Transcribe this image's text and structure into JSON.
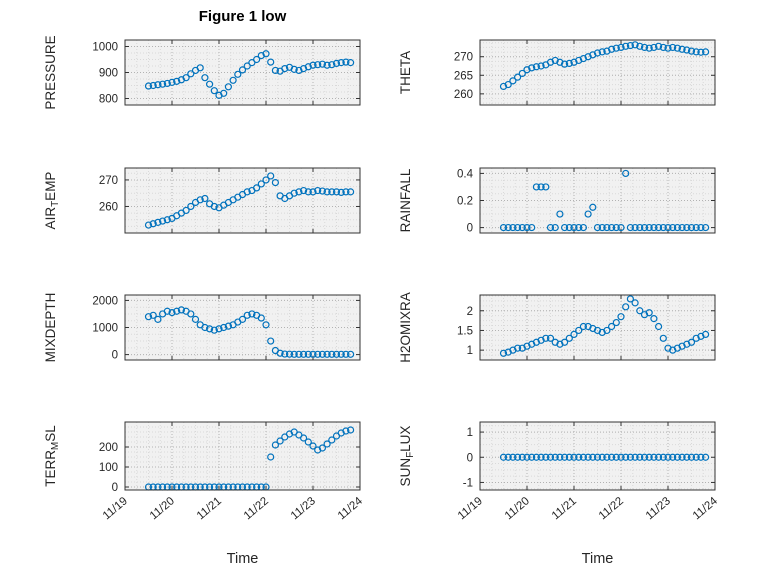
{
  "figure": {
    "title": "Figure 1 low",
    "marker_color": "#0072BD"
  },
  "chart_data": {
    "type": "scatter",
    "layout": "4x2-subplot-grid",
    "marker": "open-circle",
    "grid": "dotted-major-and-minor",
    "x_label": "Time",
    "x_range": [
      0,
      5
    ],
    "x_ticks": [
      0,
      1,
      2,
      3,
      4,
      5
    ],
    "x_tick_labels": [
      "11/19",
      "11/20",
      "11/21",
      "11/22",
      "11/23",
      "11/24"
    ],
    "x_days_since_11_19": [
      0.5,
      0.6,
      0.7,
      0.8,
      0.9,
      1,
      1.1,
      1.2,
      1.3,
      1.4,
      1.5,
      1.6,
      1.7,
      1.8,
      1.9,
      2,
      2.1,
      2.2,
      2.3,
      2.4,
      2.5,
      2.6,
      2.7,
      2.8,
      2.9,
      3,
      3.1,
      3.2,
      3.3,
      3.4,
      3.5,
      3.6,
      3.7,
      3.8,
      3.9,
      4,
      4.1,
      4.2,
      4.3,
      4.4,
      4.5,
      4.6,
      4.7,
      4.8
    ],
    "subplots": [
      {
        "name": "PRESSURE",
        "ylabel": {
          "pre": "PRESSURE",
          "sub": "",
          "post": ""
        },
        "yticks": [
          800,
          900,
          1000
        ],
        "ylim": [
          775,
          1025
        ],
        "values": [
          848,
          850,
          853,
          855,
          858,
          862,
          866,
          872,
          880,
          895,
          908,
          918,
          880,
          855,
          830,
          812,
          820,
          845,
          870,
          893,
          910,
          925,
          938,
          950,
          965,
          972,
          940,
          908,
          905,
          915,
          920,
          912,
          908,
          915,
          922,
          928,
          930,
          932,
          928,
          930,
          935,
          938,
          940,
          938
        ]
      },
      {
        "name": "THETA",
        "ylabel": {
          "pre": "THETA",
          "sub": "",
          "post": ""
        },
        "yticks": [
          260,
          265,
          270
        ],
        "ylim": [
          257,
          274.5
        ],
        "values": [
          262,
          262.5,
          263.5,
          264.5,
          265.5,
          266.5,
          267,
          267.3,
          267.5,
          267.8,
          268.5,
          269,
          268.5,
          268,
          268.2,
          268.5,
          269,
          269.5,
          270,
          270.5,
          271,
          271.3,
          271.5,
          272,
          272.3,
          272.5,
          272.8,
          273,
          273.2,
          272.8,
          272.5,
          272.3,
          272.5,
          272.8,
          272.5,
          272.3,
          272.5,
          272.3,
          272,
          271.8,
          271.5,
          271.3,
          271.2,
          271.3
        ]
      },
      {
        "name": "AIR_TEMP",
        "ylabel": {
          "pre": "AIR",
          "sub": "T",
          "post": "EMP"
        },
        "yticks": [
          260,
          270
        ],
        "ylim": [
          250,
          274.5
        ],
        "values": [
          253,
          253.5,
          254,
          254.5,
          255,
          255.5,
          256.5,
          257.5,
          258.5,
          260,
          261.5,
          262.5,
          263,
          261,
          260,
          259.5,
          260.5,
          261.5,
          262.5,
          263.5,
          264.5,
          265.5,
          266,
          267,
          268.5,
          270,
          271.5,
          269,
          264,
          263,
          264,
          265,
          265.5,
          266,
          265.5,
          265.5,
          266,
          265.8,
          265.5,
          265.5,
          265.5,
          265.3,
          265.5,
          265.5
        ]
      },
      {
        "name": "RAINFALL",
        "ylabel": {
          "pre": "RAINFALL",
          "sub": "",
          "post": ""
        },
        "yticks": [
          0,
          0.2,
          0.4
        ],
        "ylim": [
          -0.04,
          0.44
        ],
        "values": [
          0,
          0,
          0,
          0,
          0,
          0,
          0,
          0.3,
          0.3,
          0.3,
          0,
          0,
          0.1,
          0,
          0,
          0,
          0,
          0,
          0.1,
          0.15,
          0,
          0,
          0,
          0,
          0,
          0,
          0.4,
          0,
          0,
          0,
          0,
          0,
          0,
          0,
          0,
          0,
          0,
          0,
          0,
          0,
          0,
          0,
          0,
          0
        ]
      },
      {
        "name": "MIXDEPTH",
        "ylabel": {
          "pre": "MIXDEPTH",
          "sub": "",
          "post": ""
        },
        "yticks": [
          0,
          1000,
          2000
        ],
        "ylim": [
          -200,
          2200
        ],
        "values": [
          1400,
          1450,
          1300,
          1500,
          1600,
          1550,
          1600,
          1650,
          1600,
          1500,
          1300,
          1100,
          1000,
          950,
          900,
          950,
          1000,
          1050,
          1100,
          1200,
          1300,
          1450,
          1500,
          1450,
          1350,
          1100,
          500,
          150,
          50,
          20,
          15,
          10,
          10,
          10,
          10,
          10,
          10,
          10,
          10,
          10,
          10,
          10,
          10,
          10
        ]
      },
      {
        "name": "H2OMIXRA",
        "ylabel": {
          "pre": "H2OMIXRA",
          "sub": "",
          "post": ""
        },
        "yticks": [
          1,
          1.5,
          2
        ],
        "ylim": [
          0.75,
          2.4
        ],
        "values": [
          0.92,
          0.95,
          1,
          1.05,
          1.05,
          1.1,
          1.15,
          1.2,
          1.25,
          1.3,
          1.3,
          1.2,
          1.15,
          1.2,
          1.3,
          1.4,
          1.5,
          1.6,
          1.6,
          1.55,
          1.5,
          1.45,
          1.5,
          1.6,
          1.7,
          1.85,
          2.1,
          2.3,
          2.2,
          2,
          1.9,
          1.95,
          1.8,
          1.6,
          1.3,
          1.05,
          1,
          1.05,
          1.1,
          1.15,
          1.2,
          1.3,
          1.35,
          1.4
        ]
      },
      {
        "name": "TERR_MSL",
        "ylabel": {
          "pre": "TERR",
          "sub": "M",
          "post": "SL"
        },
        "yticks": [
          0,
          100,
          200
        ],
        "ylim": [
          -15,
          325
        ],
        "values": [
          0,
          0,
          0,
          0,
          0,
          0,
          0,
          0,
          0,
          0,
          0,
          0,
          0,
          0,
          0,
          0,
          0,
          0,
          0,
          0,
          0,
          0,
          0,
          0,
          0,
          0,
          150,
          210,
          230,
          250,
          265,
          275,
          260,
          245,
          225,
          205,
          185,
          195,
          215,
          235,
          255,
          270,
          280,
          285
        ]
      },
      {
        "name": "SUN_FLUX",
        "ylabel": {
          "pre": "SUN",
          "sub": "F",
          "post": "LUX"
        },
        "yticks": [
          -1,
          0,
          1
        ],
        "ylim": [
          -1.3,
          1.4
        ],
        "values": [
          0,
          0,
          0,
          0,
          0,
          0,
          0,
          0,
          0,
          0,
          0,
          0,
          0,
          0,
          0,
          0,
          0,
          0,
          0,
          0,
          0,
          0,
          0,
          0,
          0,
          0,
          0,
          0,
          0,
          0,
          0,
          0,
          0,
          0,
          0,
          0,
          0,
          0,
          0,
          0,
          0,
          0,
          0,
          0
        ]
      }
    ]
  }
}
